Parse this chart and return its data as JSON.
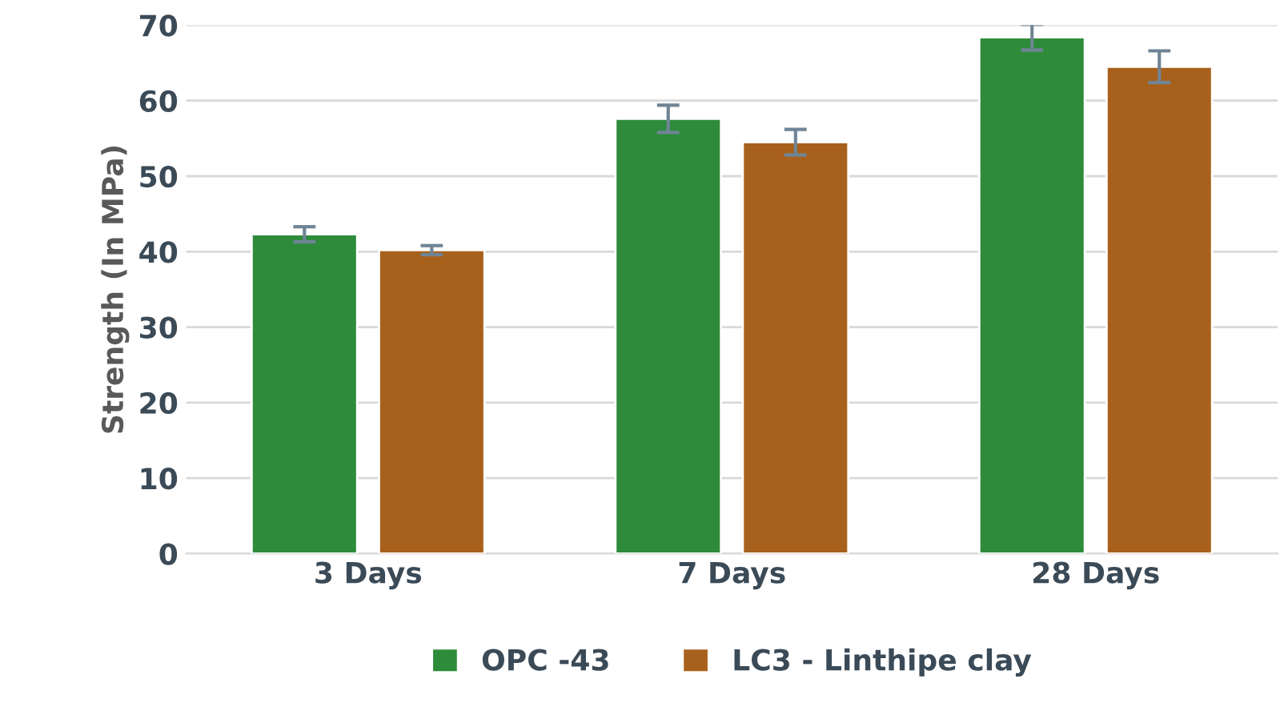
{
  "chart_data": {
    "type": "bar",
    "ylabel": "Strength (In MPa)",
    "categories": [
      "3 Days",
      "7 Days",
      "28 Days"
    ],
    "series": [
      {
        "name": "OPC -43",
        "color": "#2e8b3a",
        "values": [
          42.3,
          57.6,
          68.4
        ],
        "errors": [
          1.0,
          1.8,
          1.7
        ]
      },
      {
        "name": "LC3 - Linthipe clay",
        "color": "#a8611c",
        "values": [
          40.2,
          54.5,
          64.5
        ],
        "errors": [
          0.6,
          1.7,
          2.1
        ]
      }
    ],
    "ylim": [
      0,
      70
    ],
    "yticks": [
      0,
      10,
      20,
      30,
      40,
      50,
      60,
      70
    ],
    "grid": "y",
    "legend": "bottom"
  }
}
